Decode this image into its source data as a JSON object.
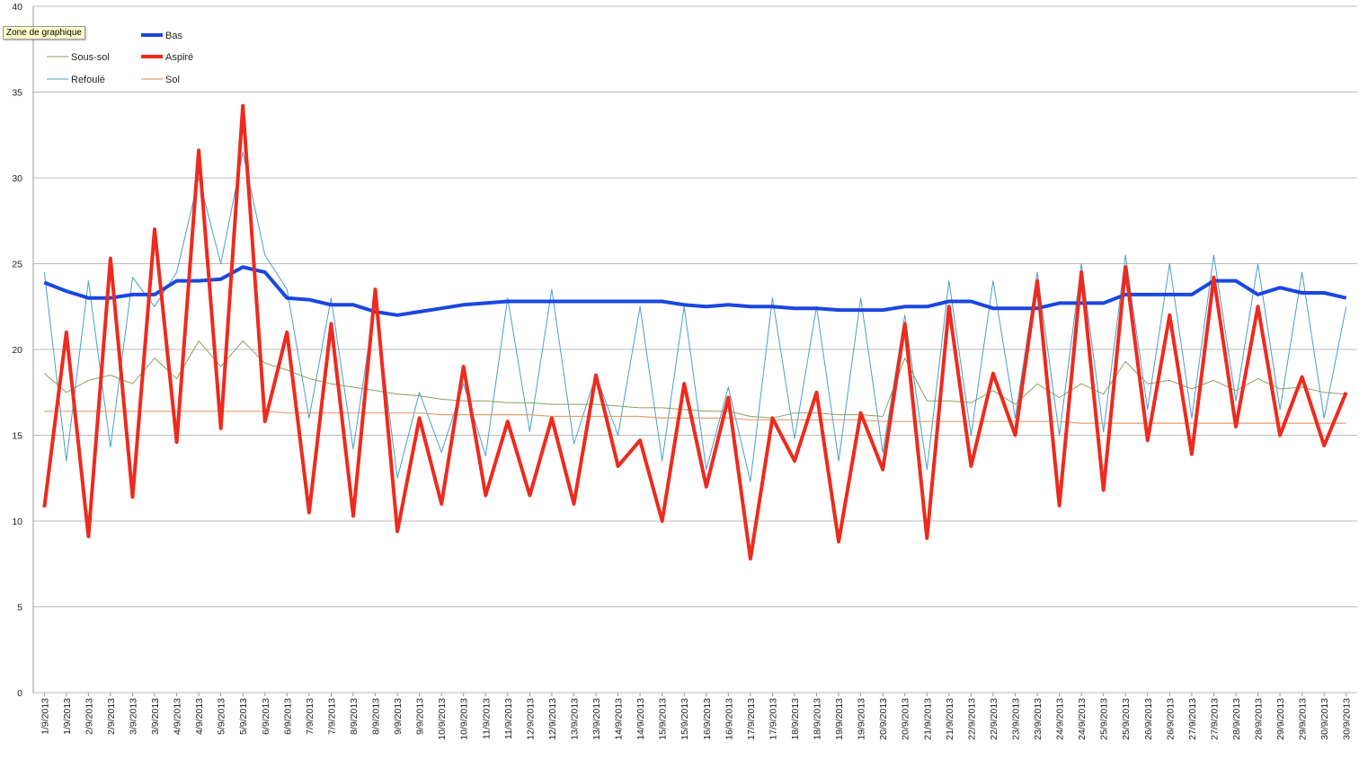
{
  "tooltip": "Zone de graphique",
  "chart_data": {
    "type": "line",
    "categories": [
      "1/9/2013",
      "1/9/2013",
      "2/9/2013",
      "2/9/2013",
      "3/9/2013",
      "3/9/2013",
      "4/9/2013",
      "4/9/2013",
      "5/9/2013",
      "5/9/2013",
      "6/9/2013",
      "6/9/2013",
      "7/9/2013",
      "7/9/2013",
      "8/9/2013",
      "8/9/2013",
      "9/9/2013",
      "9/9/2013",
      "10/9/2013",
      "10/9/2013",
      "11/9/2013",
      "11/9/2013",
      "12/9/2013",
      "12/9/2013",
      "13/9/2013",
      "13/9/2013",
      "14/9/2013",
      "14/9/2013",
      "15/9/2013",
      "15/9/2013",
      "16/9/2013",
      "16/9/2013",
      "17/9/2013",
      "17/9/2013",
      "18/9/2013",
      "18/9/2013",
      "19/9/2013",
      "19/9/2013",
      "20/9/2013",
      "20/9/2013",
      "21/9/2013",
      "21/9/2013",
      "22/9/2013",
      "22/9/2013",
      "23/9/2013",
      "23/9/2013",
      "24/9/2013",
      "24/9/2013",
      "25/9/2013",
      "25/9/2013",
      "26/9/2013",
      "26/9/2013",
      "27/9/2013",
      "27/9/2013",
      "28/9/2013",
      "28/9/2013",
      "29/9/2013",
      "29/9/2013",
      "30/9/2013",
      "30/9/2013"
    ],
    "series": [
      {
        "name": "Bas",
        "color": "#1a47e0",
        "values": [
          23.9,
          23.4,
          23,
          23,
          23.2,
          23.2,
          24,
          24,
          24.1,
          24.8,
          24.5,
          23,
          22.9,
          22.6,
          22.6,
          22.2,
          22,
          22.2,
          22.4,
          22.6,
          22.7,
          22.8,
          22.8,
          22.8,
          22.8,
          22.8,
          22.8,
          22.8,
          22.8,
          22.6,
          22.5,
          22.6,
          22.5,
          22.5,
          22.4,
          22.4,
          22.3,
          22.3,
          22.3,
          22.5,
          22.5,
          22.8,
          22.8,
          22.4,
          22.4,
          22.4,
          22.7,
          22.7,
          22.7,
          23.2,
          23.2,
          23.2,
          23.2,
          24,
          24,
          23.2,
          23.6,
          23.3,
          23.3,
          23
        ]
      },
      {
        "name": "Sous-sol",
        "color": "#8aa05a",
        "values": [
          18.6,
          17.5,
          18.2,
          18.5,
          18,
          19.5,
          18.3,
          20.5,
          19,
          20.5,
          19.2,
          18.8,
          18.3,
          18,
          17.8,
          17.6,
          17.4,
          17.3,
          17.1,
          17,
          17,
          16.9,
          16.9,
          16.8,
          16.8,
          16.8,
          16.7,
          16.6,
          16.6,
          16.5,
          16.4,
          16.4,
          16.1,
          16,
          16.3,
          16.3,
          16.2,
          16.2,
          16.1,
          19.5,
          17,
          17,
          16.9,
          17.6,
          16.8,
          18,
          17.2,
          18,
          17.4,
          19.3,
          18,
          18.2,
          17.7,
          18.2,
          17.6,
          18.3,
          17.7,
          17.8,
          17.5,
          17.4
        ]
      },
      {
        "name": "Aspiré",
        "color": "#ee2a1e",
        "values": [
          10.8,
          21,
          9.1,
          25.3,
          11.4,
          27,
          14.6,
          31.6,
          15.4,
          34.2,
          15.8,
          21,
          10.5,
          21.5,
          10.3,
          23.5,
          9.4,
          16,
          11,
          19,
          11.5,
          15.8,
          11.5,
          16,
          11,
          18.5,
          13.2,
          14.7,
          10,
          18,
          12,
          17.2,
          7.8,
          16,
          13.5,
          17.5,
          8.8,
          16.3,
          13,
          21.5,
          9,
          22.5,
          13.2,
          18.6,
          15,
          24,
          10.9,
          24.5,
          11.8,
          24.8,
          14.7,
          22,
          13.9,
          24.2,
          15.5,
          22.5,
          15,
          18.4,
          14.4,
          17.5
        ]
      },
      {
        "name": "Refoulé",
        "color": "#4a9ec8",
        "values": [
          24.5,
          13.5,
          24,
          14.3,
          24.2,
          22.5,
          24.5,
          30,
          25,
          31.5,
          25.5,
          23.5,
          16,
          23,
          14.2,
          22.8,
          12.5,
          17.5,
          14,
          18,
          13.8,
          23,
          15.2,
          23.5,
          14.5,
          18.5,
          15,
          22.5,
          13.5,
          22.5,
          13,
          17.8,
          12.3,
          23,
          14.8,
          22.5,
          13.5,
          23,
          14,
          22,
          13,
          24,
          15,
          24,
          16,
          24.5,
          15,
          25,
          15.2,
          25.5,
          16.5,
          25,
          16,
          25.5,
          17,
          25,
          16.5,
          24.5,
          16,
          22.5
        ]
      },
      {
        "name": "Sol",
        "color": "#e0a070",
        "values": [
          16.4,
          16.4,
          16.4,
          16.4,
          16.4,
          16.4,
          16.4,
          16.4,
          16.4,
          16.4,
          16.4,
          16.3,
          16.3,
          16.3,
          16.3,
          16.3,
          16.3,
          16.3,
          16.2,
          16.2,
          16.2,
          16.2,
          16.2,
          16.1,
          16.1,
          16.1,
          16.1,
          16.1,
          16,
          16,
          16,
          16,
          15.9,
          15.9,
          15.9,
          15.9,
          15.9,
          15.9,
          15.8,
          15.8,
          15.8,
          15.8,
          15.8,
          15.8,
          15.8,
          15.8,
          15.8,
          15.7,
          15.7,
          15.7,
          15.7,
          15.7,
          15.7,
          15.7,
          15.7,
          15.7,
          15.7,
          15.7,
          15.7,
          15.7
        ]
      }
    ],
    "ylim": [
      0,
      40
    ],
    "yticks": [
      0,
      5,
      10,
      15,
      20,
      25,
      30,
      35,
      40
    ],
    "grid": true
  }
}
